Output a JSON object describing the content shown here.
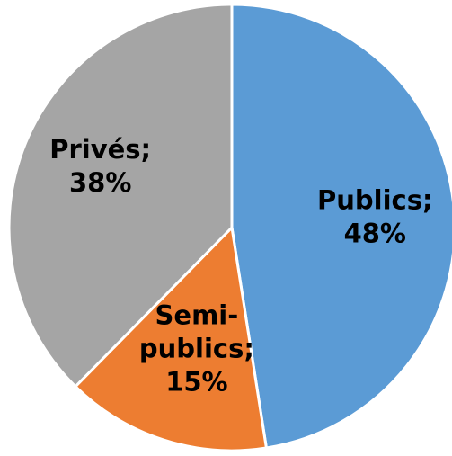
{
  "chart_data": {
    "type": "pie",
    "title": "",
    "start_angle_deg": 0,
    "direction": "clockwise",
    "slices": [
      {
        "label": "Publics",
        "value": 48,
        "display_value": "48%",
        "color": "#5B9BD5",
        "label_lines": [
          "Publics;",
          "48%"
        ]
      },
      {
        "label": "Semi-publics",
        "value": 15,
        "display_value": "15%",
        "color": "#ED7D31",
        "label_lines": [
          "Semi-",
          "publics;",
          "15%"
        ]
      },
      {
        "label": "Privés",
        "value": 38,
        "display_value": "38%",
        "color": "#A5A5A5",
        "label_lines": [
          "Privés;",
          "38%"
        ]
      }
    ],
    "slice_border_color": "#FFFFFF",
    "legend": "none"
  }
}
